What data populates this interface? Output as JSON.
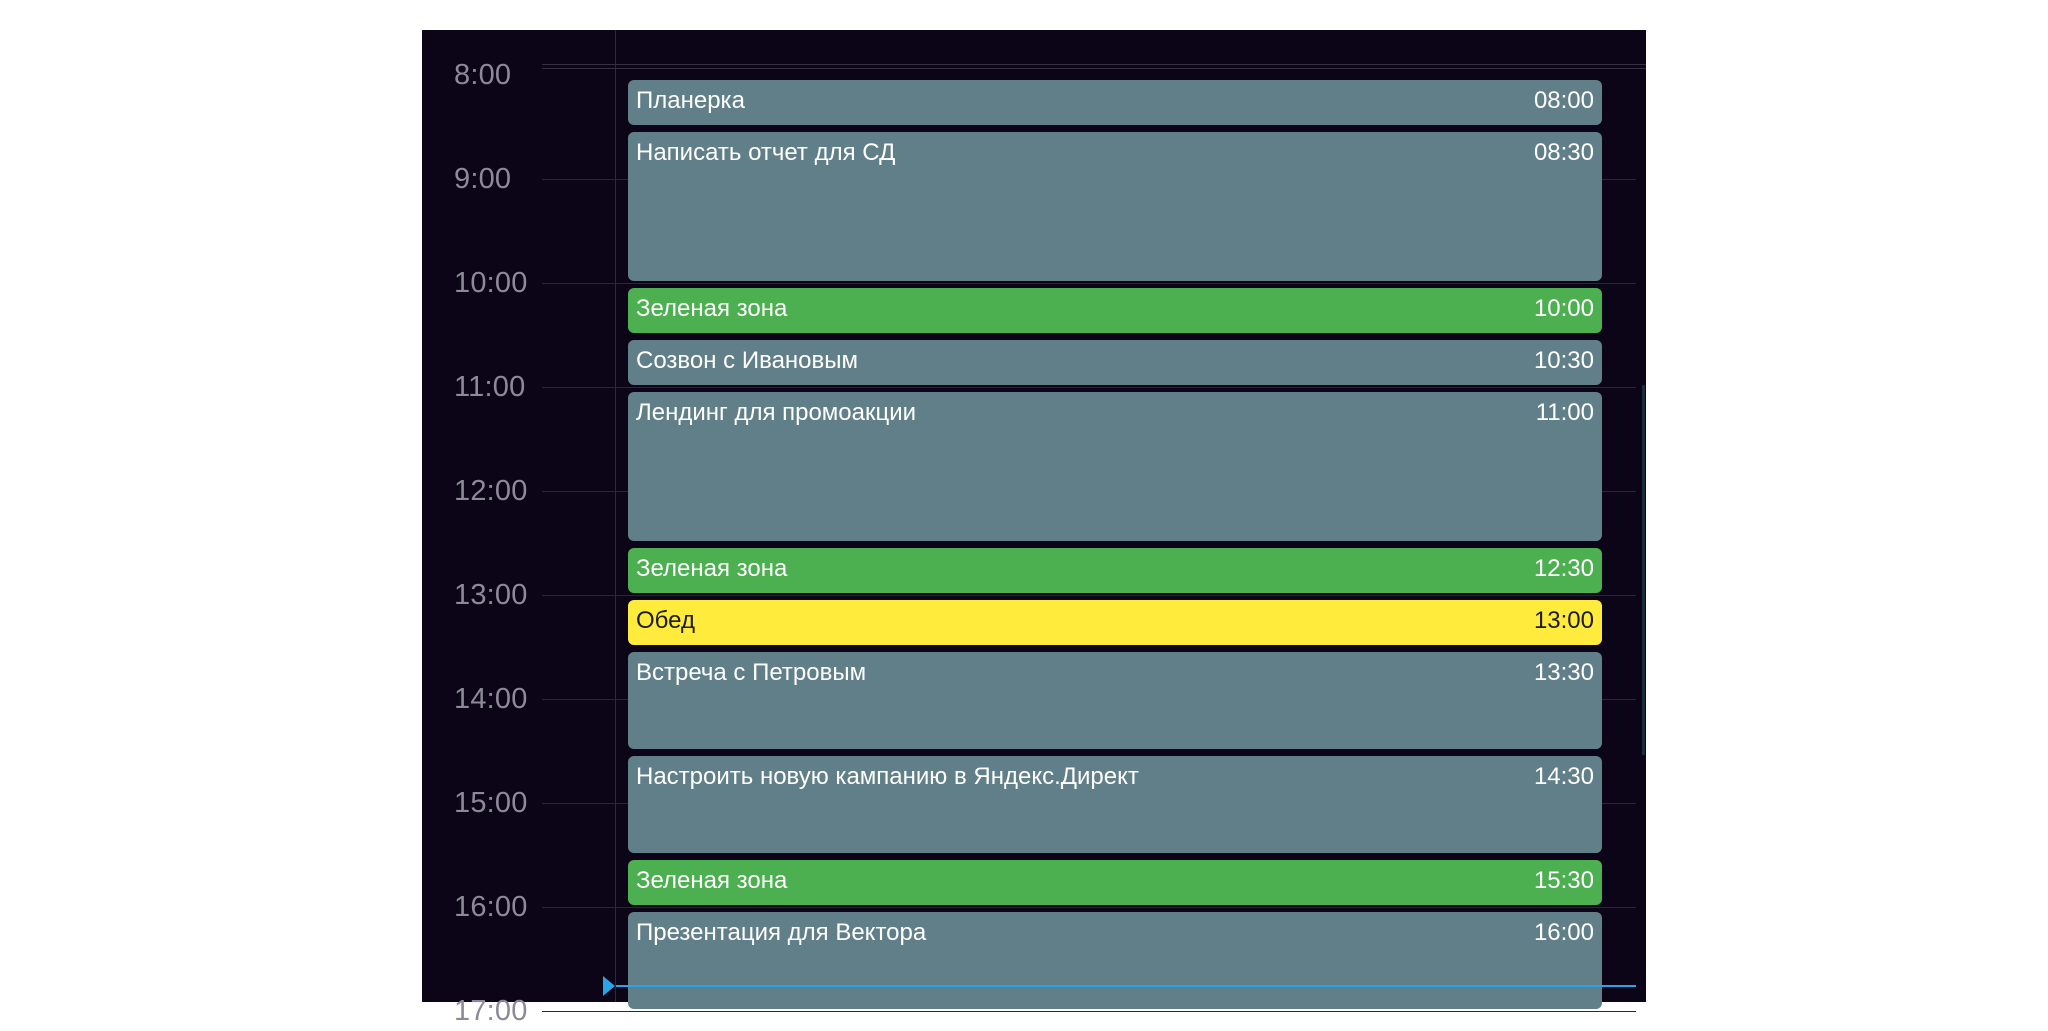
{
  "colors": {
    "background": "#0c0417",
    "task": "#617f89",
    "green_zone": "#4caf50",
    "lunch": "#ffeb3b",
    "now_indicator": "#2aa4e6",
    "label": "#8d8a98"
  },
  "hours": [
    "8:00",
    "9:00",
    "10:00",
    "11:00",
    "12:00",
    "13:00",
    "14:00",
    "15:00",
    "16:00",
    "17:00"
  ],
  "events": [
    {
      "title": "Планерка",
      "time": "08:00",
      "kind": "task",
      "duration_min": 30
    },
    {
      "title": "Написать отчет для СД",
      "time": "08:30",
      "kind": "task",
      "duration_min": 90
    },
    {
      "title": "Зеленая зона",
      "time": "10:00",
      "kind": "green_zone",
      "duration_min": 30
    },
    {
      "title": "Созвон с Ивановым",
      "time": "10:30",
      "kind": "task",
      "duration_min": 30
    },
    {
      "title": "Лендинг для промоакции",
      "time": "11:00",
      "kind": "task",
      "duration_min": 90
    },
    {
      "title": "Зеленая зона",
      "time": "12:30",
      "kind": "green_zone",
      "duration_min": 30
    },
    {
      "title": "Обед",
      "time": "13:00",
      "kind": "lunch",
      "duration_min": 30
    },
    {
      "title": "Встреча с Петровым",
      "time": "13:30",
      "kind": "task",
      "duration_min": 60
    },
    {
      "title": "Настроить новую кампанию в Яндекс.Директ",
      "time": "14:30",
      "kind": "task",
      "duration_min": 60
    },
    {
      "title": "Зеленая зона",
      "time": "15:30",
      "kind": "green_zone",
      "duration_min": 30
    },
    {
      "title": "Презентация для Вектора",
      "time": "16:00",
      "kind": "task",
      "duration_min": 60
    }
  ],
  "current_time_min": 1005
}
